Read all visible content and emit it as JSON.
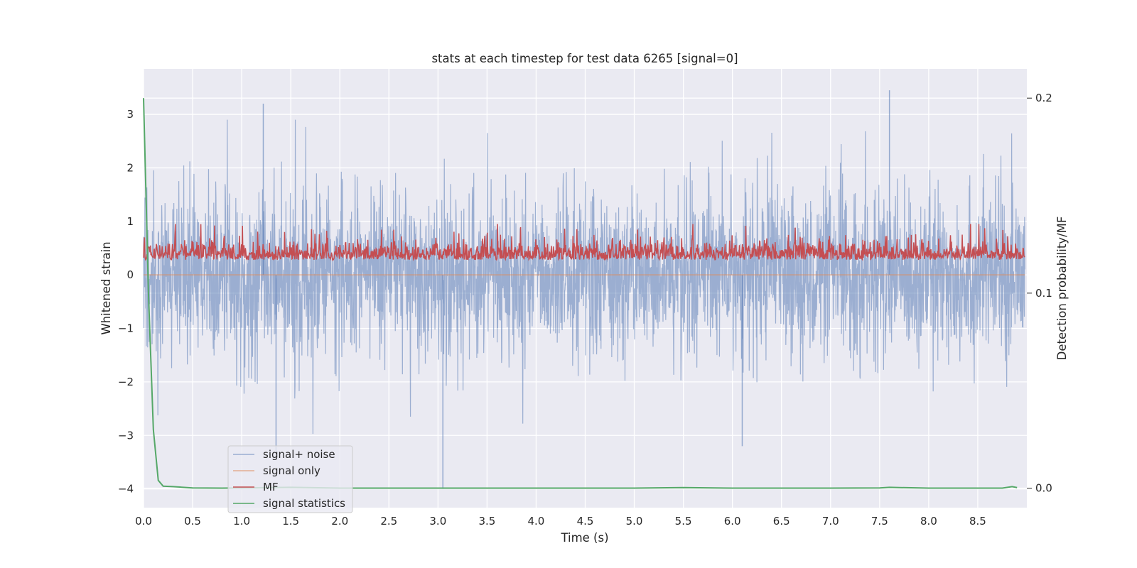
{
  "chart_data": {
    "type": "line",
    "title": "stats at each timestep for test data 6265 [signal=0]",
    "xlabel": "Time (s)",
    "ylabel": "Whitened strain",
    "ylabel_right": "Detection probability/MF",
    "xlim": [
      0,
      9.0
    ],
    "ylim": [
      -4.35,
      3.85
    ],
    "ylim_right": [
      -0.01,
      0.215
    ],
    "x_ticks": [
      0.0,
      0.5,
      1.0,
      1.5,
      2.0,
      2.5,
      3.0,
      3.5,
      4.0,
      4.5,
      5.0,
      5.5,
      6.0,
      6.5,
      7.0,
      7.5,
      8.0,
      8.5
    ],
    "x_tick_labels": [
      "0.0",
      "0.5",
      "1.0",
      "1.5",
      "2.0",
      "2.5",
      "3.0",
      "3.5",
      "4.0",
      "4.5",
      "5.0",
      "5.5",
      "6.0",
      "6.5",
      "7.0",
      "7.5",
      "8.0",
      "8.5"
    ],
    "y_ticks": [
      -4,
      -3,
      -2,
      -1,
      0,
      1,
      2,
      3
    ],
    "y_tick_labels": [
      "−4",
      "−3",
      "−2",
      "−1",
      "0",
      "1",
      "2",
      "3"
    ],
    "y_ticks_right": [
      0.0,
      0.1,
      0.2
    ],
    "y_tick_labels_right": [
      "0.0",
      "0.1",
      "0.2"
    ],
    "grid": true,
    "legend_position": "lower-left",
    "series": [
      {
        "name": "signal+ noise",
        "color": "#4c72b0",
        "axis": "left",
        "noise_std": 0.75,
        "offset": 0.0,
        "note_peaks": [
          [
            1.22,
            3.2
          ],
          [
            3.05,
            -4.0
          ],
          [
            7.6,
            3.45
          ],
          [
            1.35,
            -3.3
          ],
          [
            6.1,
            -3.2
          ]
        ]
      },
      {
        "name": "signal only",
        "color": "#dd8452",
        "axis": "left",
        "values_constant": 0.0
      },
      {
        "name": "MF",
        "color": "#c44e52",
        "axis": "left",
        "range": [
          0.05,
          0.95
        ],
        "mean": 0.3
      },
      {
        "name": "signal statistics",
        "color": "#55a868",
        "axis": "right",
        "x": [
          0.0,
          0.05,
          0.1,
          0.15,
          0.2,
          0.3,
          0.5,
          0.8,
          1.0,
          1.5,
          2.0,
          3.0,
          4.0,
          5.0,
          5.5,
          6.0,
          7.0,
          7.5,
          7.6,
          8.0,
          8.5,
          8.75,
          8.85,
          8.9
        ],
        "values": [
          0.2,
          0.1,
          0.03,
          0.004,
          0.001,
          0.0008,
          0.0001,
          0.0,
          0.0001,
          0.0004,
          0.0,
          0.0,
          0.0,
          0.0,
          0.0003,
          0.0,
          0.0,
          0.0001,
          0.0004,
          0.0,
          0.0,
          0.0,
          0.0008,
          0.0003
        ]
      }
    ]
  }
}
